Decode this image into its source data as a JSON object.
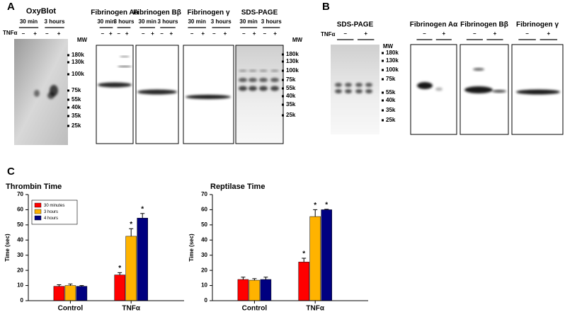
{
  "panel_labels": [
    "A",
    "B",
    "C"
  ],
  "panel_a": {
    "treatment": "TNFα",
    "blots": [
      {
        "title": "OxyBlot",
        "conditions": [
          "30 min",
          "3 hours"
        ],
        "signs": [
          "–",
          "+",
          "–",
          "+"
        ]
      },
      {
        "title": "Fibrinogen Aα",
        "conditions": [
          "30 min",
          "3 hours"
        ],
        "signs": [
          "–",
          "+",
          "–",
          "+"
        ]
      },
      {
        "title": "Fibrinogen Bβ",
        "conditions": [
          "30 min",
          "3 hours"
        ],
        "signs": [
          "–",
          "+",
          "–",
          "+"
        ]
      },
      {
        "title": "Fibrinogen γ",
        "conditions": [
          "30 min",
          "3 hours"
        ],
        "signs": [
          "–",
          "+",
          "–",
          "+"
        ]
      },
      {
        "title": "SDS-PAGE",
        "conditions": [
          "30 min",
          "3 hours"
        ],
        "signs": [
          "–",
          "+",
          "–",
          "+"
        ]
      }
    ],
    "mw_sets": [
      {
        "label": "MW",
        "markers": [
          "180k",
          "130k",
          "100k",
          "75k",
          "55k",
          "40k",
          "35k",
          "25k"
        ]
      },
      {
        "label": "MW",
        "markers": [
          "180k",
          "130k",
          "100k",
          "75k",
          "55k",
          "40k",
          "35k",
          "25k"
        ]
      }
    ]
  },
  "panel_b": {
    "treatment": "TNFα",
    "blots": [
      {
        "title": "SDS-PAGE",
        "signs": [
          "–",
          "+"
        ]
      },
      {
        "title": "Fibrinogen Aα",
        "signs": [
          "–",
          "+"
        ]
      },
      {
        "title": "Fibrinogen Bβ",
        "signs": [
          "–",
          "+"
        ]
      },
      {
        "title": "Fibrinogen γ",
        "signs": [
          "–",
          "+"
        ]
      }
    ],
    "mw_set": {
      "label": "MW",
      "markers": [
        "180k",
        "130k",
        "100k",
        "75k",
        "55k",
        "40k",
        "35k",
        "25k"
      ]
    }
  },
  "chart_data": [
    {
      "type": "bar",
      "title": "Thrombin Time",
      "y_label": "Time (sec)",
      "categories": [
        "Control",
        "TNFα"
      ],
      "series": [
        {
          "name": "30 minutes",
          "color": "#ff0000",
          "values": [
            9.5,
            17
          ],
          "errors": [
            1,
            1.5
          ],
          "annotations": [
            null,
            "*"
          ]
        },
        {
          "name": "3 hours",
          "color": "#ffb300",
          "values": [
            10,
            42.5
          ],
          "errors": [
            1,
            5
          ],
          "annotations": [
            null,
            "*"
          ]
        },
        {
          "name": "4 hours",
          "color": "#000080",
          "values": [
            9.5,
            54.5
          ],
          "errors": [
            0.5,
            3
          ],
          "annotations": [
            null,
            "*"
          ]
        }
      ],
      "ylim": [
        0,
        70
      ],
      "yticks": [
        0,
        10,
        20,
        30,
        40,
        50,
        60,
        70
      ],
      "legend": "upper left"
    },
    {
      "type": "bar",
      "title": "Reptilase Time",
      "y_label": "Time (sec)",
      "categories": [
        "Control",
        "TNFα"
      ],
      "series": [
        {
          "color": "#ff0000",
          "values": [
            14,
            25.5
          ],
          "errors": [
            1.5,
            2.5
          ],
          "annotations": [
            null,
            "*"
          ]
        },
        {
          "color": "#ffb300",
          "values": [
            13.5,
            55.5
          ],
          "errors": [
            1,
            4.5
          ],
          "annotations": [
            null,
            "*"
          ]
        },
        {
          "color": "#000080",
          "values": [
            14,
            60
          ],
          "errors": [
            1.5,
            0.3
          ],
          "annotations": [
            null,
            "*"
          ]
        }
      ],
      "ylim": [
        0,
        70
      ],
      "yticks": [
        0,
        10,
        20,
        30,
        40,
        50,
        60,
        70
      ],
      "legend": null
    }
  ]
}
